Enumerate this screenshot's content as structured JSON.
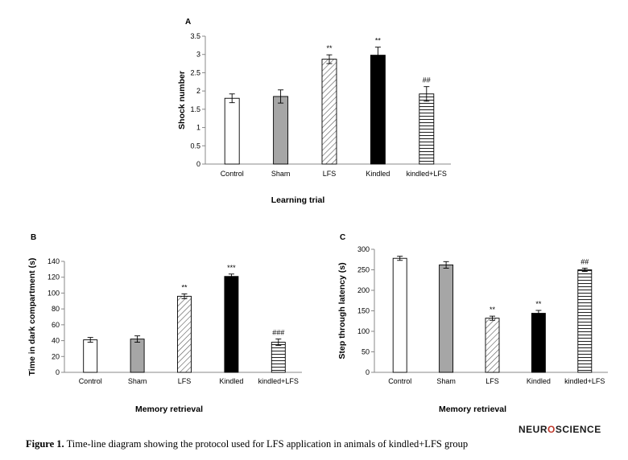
{
  "caption": {
    "label": "Figure 1.",
    "text": "Time-line diagram showing the protocol used for LFS application in animals of kindled+LFS group"
  },
  "logo": {
    "left": "NEUR",
    "middle": "O",
    "right": "SCIENCE"
  },
  "chart_data": [
    {
      "type": "bar",
      "panel": "A",
      "categories": [
        "Control",
        "Sham",
        "LFS",
        "Kindled",
        "kindled+LFS"
      ],
      "values": [
        1.8,
        1.85,
        2.87,
        2.98,
        1.92
      ],
      "errors": [
        0.12,
        0.18,
        0.12,
        0.22,
        0.2
      ],
      "annotations": [
        "",
        "",
        "**",
        "**",
        "##"
      ],
      "fills": [
        "white",
        "gray",
        "diagonal",
        "black",
        "horizontal"
      ],
      "ylabel": "Shock number",
      "xlabel": "Learning trial",
      "ylim": [
        0,
        3.5
      ],
      "yticks": [
        "0",
        "0.5",
        "1",
        "1.5",
        "2",
        "2.5",
        "3",
        "3.5"
      ],
      "grid": false
    },
    {
      "type": "bar",
      "panel": "B",
      "categories": [
        "Control",
        "Sham",
        "LFS",
        "Kindled",
        "kindled+LFS"
      ],
      "values": [
        41,
        42,
        96,
        121,
        38
      ],
      "errors": [
        3,
        4,
        3,
        3,
        4
      ],
      "annotations": [
        "",
        "",
        "**",
        "***",
        "###"
      ],
      "fills": [
        "white",
        "gray",
        "diagonal",
        "black",
        "horizontal"
      ],
      "ylabel": "Time in dark compartment (s)",
      "xlabel": "Memory  retrieval",
      "ylim": [
        0,
        140
      ],
      "yticks": [
        "0",
        "20",
        "40",
        "60",
        "80",
        "100",
        "120",
        "140"
      ],
      "grid": false
    },
    {
      "type": "bar",
      "panel": "C",
      "categories": [
        "Control",
        "Sham",
        "LFS",
        "Kindled",
        "kindled+LFS"
      ],
      "values": [
        278,
        262,
        132,
        144,
        250
      ],
      "errors": [
        5,
        8,
        5,
        7,
        4
      ],
      "annotations": [
        "",
        "",
        "**",
        "**",
        "##"
      ],
      "fills": [
        "white",
        "gray",
        "diagonal",
        "black",
        "horizontal"
      ],
      "ylabel": "Step through latency (s)",
      "xlabel": "Memory  retrieval",
      "ylim": [
        0,
        300
      ],
      "yticks": [
        "0",
        "50",
        "100",
        "150",
        "200",
        "250",
        "300"
      ],
      "grid": false
    }
  ]
}
